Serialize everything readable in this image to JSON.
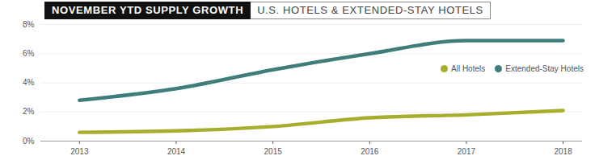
{
  "chart_data": {
    "type": "line",
    "title": "NOVEMBER YTD SUPPLY GROWTH",
    "subtitle": "U.S. HOTELS & EXTENDED-STAY HOTELS",
    "x": [
      2013,
      2014,
      2015,
      2016,
      2017,
      2018
    ],
    "xlim": [
      2012.6,
      2018.2
    ],
    "xticks": [
      2013,
      2014,
      2015,
      2016,
      2017,
      2018
    ],
    "ylim": [
      0,
      8
    ],
    "yticks": [
      {
        "value": 0,
        "label": "0%"
      },
      {
        "value": 2,
        "label": "2%"
      },
      {
        "value": 4,
        "label": "4%"
      },
      {
        "value": 6,
        "label": "6%"
      },
      {
        "value": 8,
        "label": "8%"
      }
    ],
    "grid": true,
    "legend": "right",
    "series": [
      {
        "name": "All Hotels",
        "color": "#a7ad2c",
        "values": [
          0.6,
          0.7,
          1.0,
          1.6,
          1.8,
          2.1
        ]
      },
      {
        "name": "Extended-Stay Hotels",
        "color": "#3f7d7d",
        "values": [
          2.8,
          3.6,
          4.9,
          6.0,
          6.9,
          6.9
        ]
      }
    ]
  }
}
